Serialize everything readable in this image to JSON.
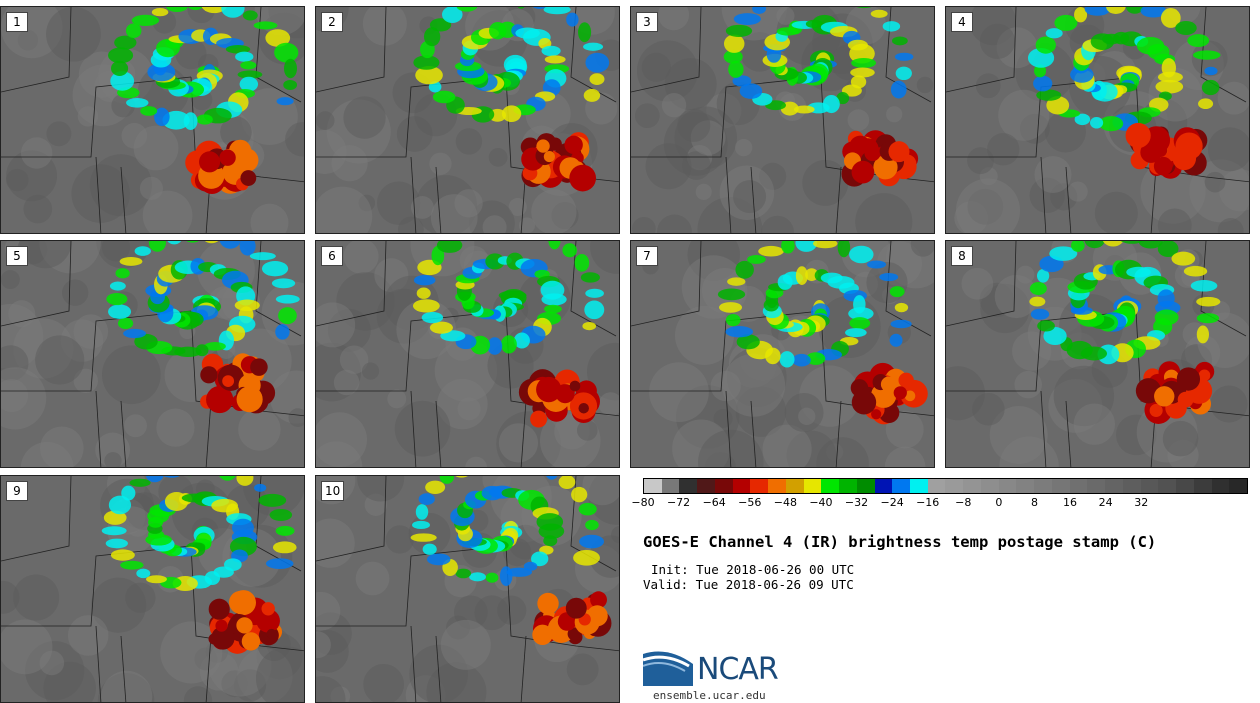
{
  "title": "GOES-E Channel 4 (IR) brightness temp postage stamp (C)",
  "init": "Init: Tue 2018-06-26 00 UTC",
  "valid": "Valid: Tue 2018-06-26 09 UTC",
  "panels": [
    "1",
    "2",
    "3",
    "4",
    "5",
    "6",
    "7",
    "8",
    "9",
    "10"
  ],
  "colorbar": {
    "ticks": [
      "−80",
      "−72",
      "−64",
      "−56",
      "−48",
      "−40",
      "−32",
      "−24",
      "−16",
      "−8",
      "0",
      "8",
      "16",
      "24",
      "32"
    ],
    "colors": [
      "#c8c8c8",
      "#787878",
      "#303030",
      "#501818",
      "#780808",
      "#b40000",
      "#e62800",
      "#f06e00",
      "#d2a000",
      "#e6e600",
      "#00e600",
      "#00b400",
      "#008c00",
      "#0014b4",
      "#0078f0",
      "#00f0f0",
      "#a0a0a0",
      "#9a9a9a",
      "#949494",
      "#8e8e8e",
      "#888888",
      "#828282",
      "#7c7c7c",
      "#767676",
      "#707070",
      "#6a6a6a",
      "#646464",
      "#5e5e5e",
      "#585858",
      "#525252",
      "#484848",
      "#3c3c3c",
      "#303030",
      "#282828"
    ]
  },
  "logo": {
    "text": "NCAR",
    "site": "ensemble.ucar.edu"
  },
  "colors": {
    "map_bg": "#6a6a6a",
    "brand": "#1a4a7a"
  }
}
